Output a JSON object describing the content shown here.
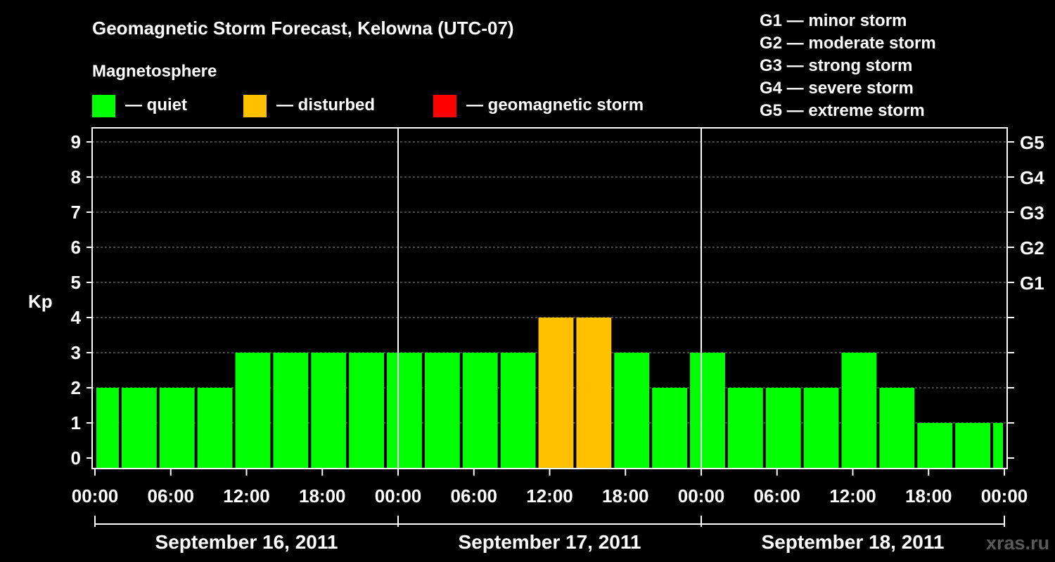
{
  "colors": {
    "quiet": "#00ff00",
    "disturbed": "#ffc000",
    "storm": "#ff0000",
    "grid": "#888888",
    "axis": "#ffffff"
  },
  "chart_data": {
    "type": "bar",
    "title": "Geomagnetic Storm Forecast, Kelowna (UTC-07)",
    "ylabel": "Kp",
    "ylim": [
      0,
      9
    ],
    "yticks": [
      "0",
      "1",
      "2",
      "3",
      "4",
      "5",
      "6",
      "7",
      "8",
      "9"
    ],
    "right_ticks": [
      {
        "kp": 5,
        "label": "G1"
      },
      {
        "kp": 6,
        "label": "G2"
      },
      {
        "kp": 7,
        "label": "G3"
      },
      {
        "kp": 8,
        "label": "G4"
      },
      {
        "kp": 9,
        "label": "G5"
      }
    ],
    "xlim_hours": [
      0,
      72
    ],
    "xticks": [
      {
        "h": 0,
        "label": "00:00"
      },
      {
        "h": 6,
        "label": "06:00"
      },
      {
        "h": 12,
        "label": "12:00"
      },
      {
        "h": 18,
        "label": "18:00"
      },
      {
        "h": 24,
        "label": "00:00"
      },
      {
        "h": 30,
        "label": "06:00"
      },
      {
        "h": 36,
        "label": "12:00"
      },
      {
        "h": 42,
        "label": "18:00"
      },
      {
        "h": 48,
        "label": "00:00"
      },
      {
        "h": 54,
        "label": "06:00"
      },
      {
        "h": 60,
        "label": "12:00"
      },
      {
        "h": 66,
        "label": "18:00"
      },
      {
        "h": 72,
        "label": "00:00"
      }
    ],
    "days": [
      "September 16, 2011",
      "September 17, 2011",
      "September 18, 2011"
    ],
    "bars": [
      {
        "start": 0,
        "end": 2,
        "kp": 2
      },
      {
        "start": 2,
        "end": 5,
        "kp": 2
      },
      {
        "start": 5,
        "end": 8,
        "kp": 2
      },
      {
        "start": 8,
        "end": 11,
        "kp": 2
      },
      {
        "start": 11,
        "end": 14,
        "kp": 3
      },
      {
        "start": 14,
        "end": 17,
        "kp": 3
      },
      {
        "start": 17,
        "end": 20,
        "kp": 3
      },
      {
        "start": 20,
        "end": 23,
        "kp": 3
      },
      {
        "start": 23,
        "end": 26,
        "kp": 3
      },
      {
        "start": 26,
        "end": 29,
        "kp": 3
      },
      {
        "start": 29,
        "end": 32,
        "kp": 3
      },
      {
        "start": 32,
        "end": 35,
        "kp": 3
      },
      {
        "start": 35,
        "end": 38,
        "kp": 4
      },
      {
        "start": 38,
        "end": 41,
        "kp": 4
      },
      {
        "start": 41,
        "end": 44,
        "kp": 3
      },
      {
        "start": 44,
        "end": 47,
        "kp": 2
      },
      {
        "start": 47,
        "end": 50,
        "kp": 3
      },
      {
        "start": 50,
        "end": 53,
        "kp": 2
      },
      {
        "start": 53,
        "end": 56,
        "kp": 2
      },
      {
        "start": 56,
        "end": 59,
        "kp": 2
      },
      {
        "start": 59,
        "end": 62,
        "kp": 3
      },
      {
        "start": 62,
        "end": 65,
        "kp": 2
      },
      {
        "start": 65,
        "end": 68,
        "kp": 1
      },
      {
        "start": 68,
        "end": 71,
        "kp": 1
      },
      {
        "start": 71,
        "end": 72,
        "kp": 1
      }
    ],
    "legend_title": "Magnetosphere",
    "legend": [
      {
        "label": "— quiet",
        "color": "#00ff00"
      },
      {
        "label": "— disturbed",
        "color": "#ffc000"
      },
      {
        "label": "— geomagnetic storm",
        "color": "#ff0000"
      }
    ],
    "g_scale": [
      "G1 — minor storm",
      "G2 — moderate storm",
      "G3 — strong storm",
      "G4 — severe storm",
      "G5 — extreme storm"
    ],
    "watermark": "xras.ru"
  }
}
